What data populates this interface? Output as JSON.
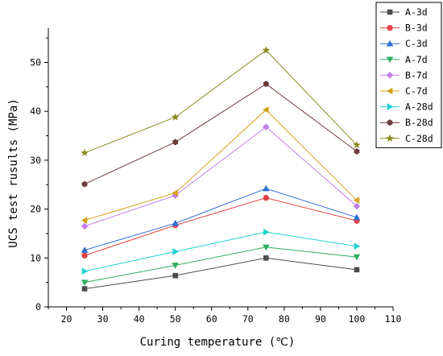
{
  "chart_data": {
    "type": "line",
    "title": "",
    "xlabel": "Curing temperature (℃)",
    "ylabel": "UCS test rusults (MPa)",
    "xlim": [
      15,
      110
    ],
    "ylim": [
      0,
      57
    ],
    "xticks": [
      20,
      30,
      40,
      50,
      60,
      70,
      80,
      90,
      100,
      110
    ],
    "yticks": [
      0,
      10,
      20,
      30,
      40,
      50
    ],
    "grid": false,
    "legend_position": "top-right",
    "x": [
      25,
      50,
      75,
      100
    ],
    "series": [
      {
        "name": "A-3d",
        "values": [
          3.7,
          6.4,
          10.0,
          7.6
        ],
        "color": "#4d4d4d",
        "marker": "square"
      },
      {
        "name": "B-3d",
        "values": [
          10.5,
          16.7,
          22.3,
          17.6
        ],
        "color": "#e64545",
        "marker": "circle"
      },
      {
        "name": "C-3d",
        "values": [
          11.6,
          17.1,
          24.2,
          18.3
        ],
        "color": "#2d6fd6",
        "marker": "triangle-up"
      },
      {
        "name": "A-7d",
        "values": [
          5.0,
          8.5,
          12.2,
          10.2
        ],
        "color": "#2fae62",
        "marker": "triangle-down"
      },
      {
        "name": "B-7d",
        "values": [
          16.5,
          22.8,
          36.8,
          20.6
        ],
        "color": "#c27ee6",
        "marker": "diamond"
      },
      {
        "name": "C-7d",
        "values": [
          17.7,
          23.3,
          40.3,
          21.8
        ],
        "color": "#d4a017",
        "marker": "triangle-left"
      },
      {
        "name": "A-28d",
        "values": [
          7.3,
          11.3,
          15.3,
          12.4
        ],
        "color": "#1fd1d1",
        "marker": "triangle-right"
      },
      {
        "name": "B-28d",
        "values": [
          25.1,
          33.7,
          45.6,
          31.8
        ],
        "color": "#6b3d3d",
        "marker": "hexagon"
      },
      {
        "name": "C-28d",
        "values": [
          31.5,
          38.8,
          52.5,
          33.1
        ],
        "color": "#8a8a1f",
        "marker": "star"
      }
    ]
  }
}
